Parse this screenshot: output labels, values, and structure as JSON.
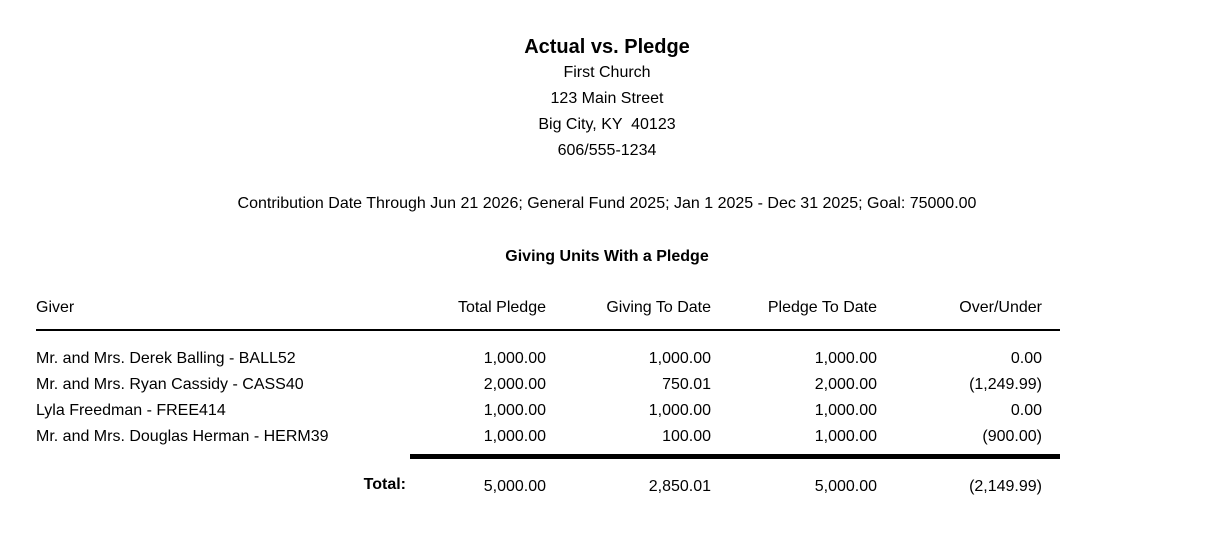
{
  "report": {
    "title": "Actual vs. Pledge",
    "church_name": "First Church",
    "address_street": "123 Main Street",
    "address_city": "Big City, KY  40123",
    "phone": "606/555-1234",
    "criteria": "Contribution Date Through Jun 21 2026; General Fund 2025; Jan 1 2025 - Dec 31 2025; Goal: 75000.00",
    "section_title": "Giving Units With a Pledge"
  },
  "colors": {
    "text": "#000000",
    "background": "#ffffff",
    "rule": "#000000"
  },
  "table": {
    "columns": [
      "Giver",
      "Total Pledge",
      "Giving To Date",
      "Pledge To Date",
      "Over/Under"
    ],
    "rows": [
      {
        "giver": "Mr. and Mrs. Derek Balling - BALL52",
        "total_pledge": "1,000.00",
        "giving_to_date": "1,000.00",
        "pledge_to_date": "1,000.00",
        "over_under": "0.00"
      },
      {
        "giver": "Mr. and Mrs. Ryan Cassidy - CASS40",
        "total_pledge": "2,000.00",
        "giving_to_date": "750.01",
        "pledge_to_date": "2,000.00",
        "over_under": "(1,249.99)"
      },
      {
        "giver": "Lyla Freedman - FREE414",
        "total_pledge": "1,000.00",
        "giving_to_date": "1,000.00",
        "pledge_to_date": "1,000.00",
        "over_under": "0.00"
      },
      {
        "giver": "Mr. and Mrs. Douglas Herman - HERM39",
        "total_pledge": "1,000.00",
        "giving_to_date": "100.00",
        "pledge_to_date": "1,000.00",
        "over_under": "(900.00)"
      }
    ],
    "total": {
      "label": "Total:",
      "total_pledge": "5,000.00",
      "giving_to_date": "2,850.01",
      "pledge_to_date": "5,000.00",
      "over_under": "(2,149.99)"
    }
  }
}
